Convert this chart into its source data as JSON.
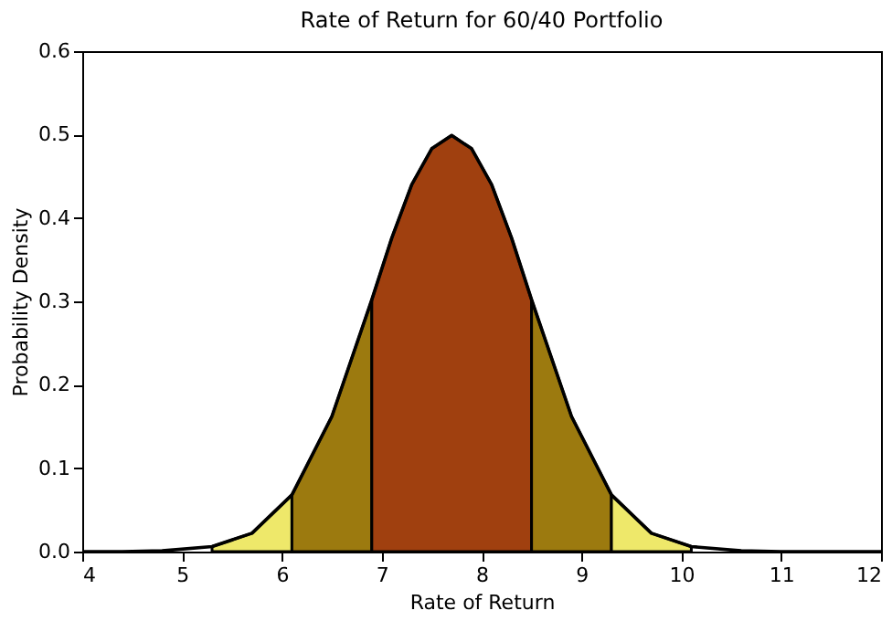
{
  "chart_data": {
    "type": "area",
    "title": "Rate of Return for 60/40 Portfolio",
    "xlabel": "Rate of Return",
    "ylabel": "Probability Density",
    "xlim": [
      4,
      12
    ],
    "xticks": [
      4,
      5,
      6,
      7,
      8,
      9,
      10,
      11,
      12
    ],
    "ylim": [
      0,
      0.6
    ],
    "yticks": [
      {
        "value": 0,
        "label": "0.0"
      },
      0.1,
      0.2,
      0.3,
      0.4,
      0.5,
      0.6
    ],
    "grid": false,
    "series": [
      {
        "color": "#eee86a",
        "x": [
          5.3,
          5.7,
          6.1
        ],
        "values": [
          0.006,
          0.022,
          0.068
        ]
      },
      {
        "color": "#9c7a0f",
        "x": [
          6.1,
          6.5,
          6.9
        ],
        "values": [
          0.068,
          0.162,
          0.302
        ]
      },
      {
        "color": "#a0400f",
        "x": [
          6.9,
          7.1,
          7.3,
          7.5,
          7.7,
          7.9,
          8.1,
          8.3,
          8.5
        ],
        "values": [
          0.302,
          0.376,
          0.44,
          0.483,
          0.499,
          0.483,
          0.44,
          0.376,
          0.302
        ]
      },
      {
        "color": "#9c7a0f",
        "x": [
          8.5,
          8.9,
          9.3
        ],
        "values": [
          0.302,
          0.162,
          0.068
        ]
      },
      {
        "color": "#eee86a",
        "x": [
          9.3,
          9.7,
          10.1
        ],
        "values": [
          0.068,
          0.022,
          0.006
        ]
      },
      {
        "type": "line",
        "color": "#000000",
        "x": [
          4,
          4.4,
          4.8,
          5.3,
          5.7,
          6.1,
          6.5,
          6.9,
          7.1,
          7.3,
          7.5,
          7.7,
          7.9,
          8.1,
          8.3,
          8.5,
          8.9,
          9.3,
          9.7,
          10.1,
          10.6,
          11,
          11.5,
          12
        ],
        "values": [
          0,
          0,
          0.001,
          0.006,
          0.022,
          0.068,
          0.162,
          0.302,
          0.376,
          0.44,
          0.483,
          0.499,
          0.483,
          0.44,
          0.376,
          0.302,
          0.162,
          0.068,
          0.022,
          0.006,
          0.001,
          0,
          0,
          0
        ]
      }
    ]
  }
}
